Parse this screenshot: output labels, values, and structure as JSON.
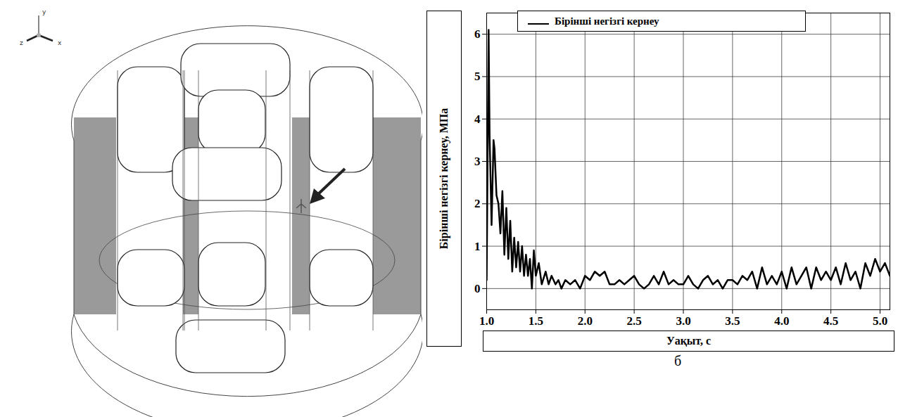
{
  "chart_data": {
    "type": "line",
    "x_label": "Уақыт, с",
    "y_label": "Бірінші негізгі кернеу, МПа",
    "annotations": [
      {
        "text": "б"
      }
    ],
    "xlim": [
      1.0,
      5.1
    ],
    "ylim": [
      -0.5,
      6.5
    ],
    "xticks": [
      {
        "value": 1,
        "label": "1.0"
      },
      1.5,
      {
        "value": 2,
        "label": "2.0"
      },
      2.5,
      {
        "value": 3,
        "label": "3.0"
      },
      3.5,
      {
        "value": 4,
        "label": "4.0"
      },
      4.5,
      {
        "value": 5,
        "label": "5.0"
      }
    ],
    "yticks": [
      0,
      1,
      2,
      3,
      4,
      5,
      6
    ],
    "grid": true,
    "legend": "top",
    "x": [
      1.0,
      1.02,
      1.03,
      1.05,
      1.07,
      1.08,
      1.1,
      1.12,
      1.14,
      1.16,
      1.18,
      1.2,
      1.22,
      1.24,
      1.26,
      1.28,
      1.3,
      1.32,
      1.34,
      1.36,
      1.38,
      1.4,
      1.42,
      1.44,
      1.46,
      1.48,
      1.5,
      1.53,
      1.56,
      1.6,
      1.63,
      1.66,
      1.7,
      1.73,
      1.76,
      1.8,
      1.85,
      1.9,
      1.95,
      2.0,
      2.05,
      2.1,
      2.15,
      2.2,
      2.25,
      2.3,
      2.35,
      2.4,
      2.45,
      2.5,
      2.55,
      2.6,
      2.65,
      2.7,
      2.75,
      2.8,
      2.85,
      2.9,
      2.95,
      3.0,
      3.05,
      3.1,
      3.15,
      3.2,
      3.25,
      3.3,
      3.35,
      3.4,
      3.45,
      3.5,
      3.55,
      3.6,
      3.65,
      3.7,
      3.75,
      3.8,
      3.85,
      3.9,
      3.95,
      4.0,
      4.05,
      4.1,
      4.15,
      4.2,
      4.25,
      4.3,
      4.35,
      4.4,
      4.45,
      4.5,
      4.55,
      4.6,
      4.65,
      4.7,
      4.75,
      4.8,
      4.85,
      4.9,
      4.95,
      5.0,
      5.05,
      5.1
    ],
    "series": [
      {
        "name": "Бірінші негізгі кернеу",
        "color": "#000000",
        "values": [
          0.2,
          6.1,
          3.6,
          1.5,
          3.5,
          3.3,
          2.2,
          2.0,
          1.3,
          2.3,
          0.8,
          1.9,
          0.7,
          1.6,
          0.4,
          1.2,
          0.5,
          1.1,
          0.4,
          1.0,
          0.3,
          0.8,
          0.3,
          0.7,
          0.0,
          0.9,
          0.3,
          0.6,
          0.1,
          0.4,
          0.1,
          0.3,
          0.1,
          0.2,
          0.0,
          0.2,
          0.1,
          0.2,
          0.0,
          0.3,
          0.2,
          0.4,
          0.3,
          0.4,
          0.1,
          0.1,
          0.2,
          0.1,
          0.2,
          0.3,
          0.1,
          0.0,
          0.1,
          0.3,
          0.1,
          0.4,
          0.1,
          0.2,
          0.1,
          0.1,
          0.3,
          0.1,
          0.0,
          0.2,
          0.3,
          0.1,
          0.2,
          0.0,
          0.2,
          0.2,
          0.1,
          0.3,
          0.2,
          0.4,
          0.0,
          0.5,
          0.1,
          0.3,
          0.1,
          0.4,
          0.0,
          0.5,
          0.1,
          0.3,
          0.5,
          0.0,
          0.5,
          0.2,
          0.4,
          0.2,
          0.5,
          0.1,
          0.6,
          0.2,
          0.4,
          0.0,
          0.6,
          0.3,
          0.7,
          0.4,
          0.6,
          0.3
        ]
      }
    ]
  },
  "diagram": {
    "axis_labels": [
      "y",
      "z",
      "x"
    ]
  }
}
